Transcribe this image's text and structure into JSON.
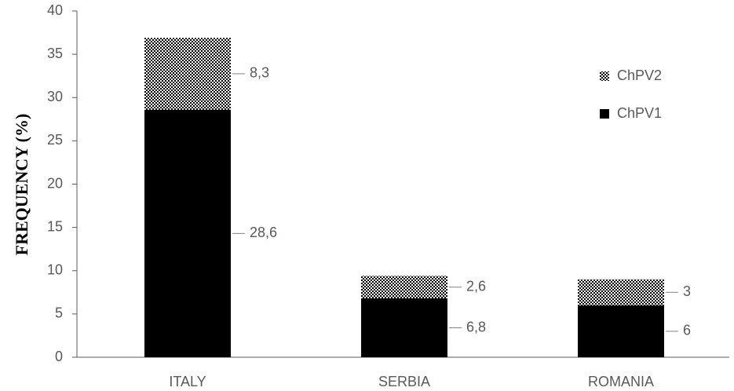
{
  "chart_data": {
    "type": "stacked_bar",
    "y_label": "FREQUENCY (%)",
    "categories": [
      "ITALY",
      "SERBIA",
      "ROMANIA"
    ],
    "series": [
      {
        "name": "ChPV1",
        "color": "#000000",
        "values": [
          28.6,
          6.8,
          6
        ],
        "value_labels": [
          "28,6",
          "6,8",
          "6"
        ]
      },
      {
        "name": "ChPV2",
        "color": "#000000",
        "pattern": "checker",
        "values": [
          8.3,
          2.6,
          3
        ],
        "value_labels": [
          "8,3",
          "2,6",
          "3"
        ]
      }
    ],
    "ylim": [
      0,
      40
    ],
    "yticks": [
      0,
      5,
      10,
      15,
      20,
      25,
      30,
      35,
      40
    ],
    "grid": false,
    "legend": "upper right"
  }
}
